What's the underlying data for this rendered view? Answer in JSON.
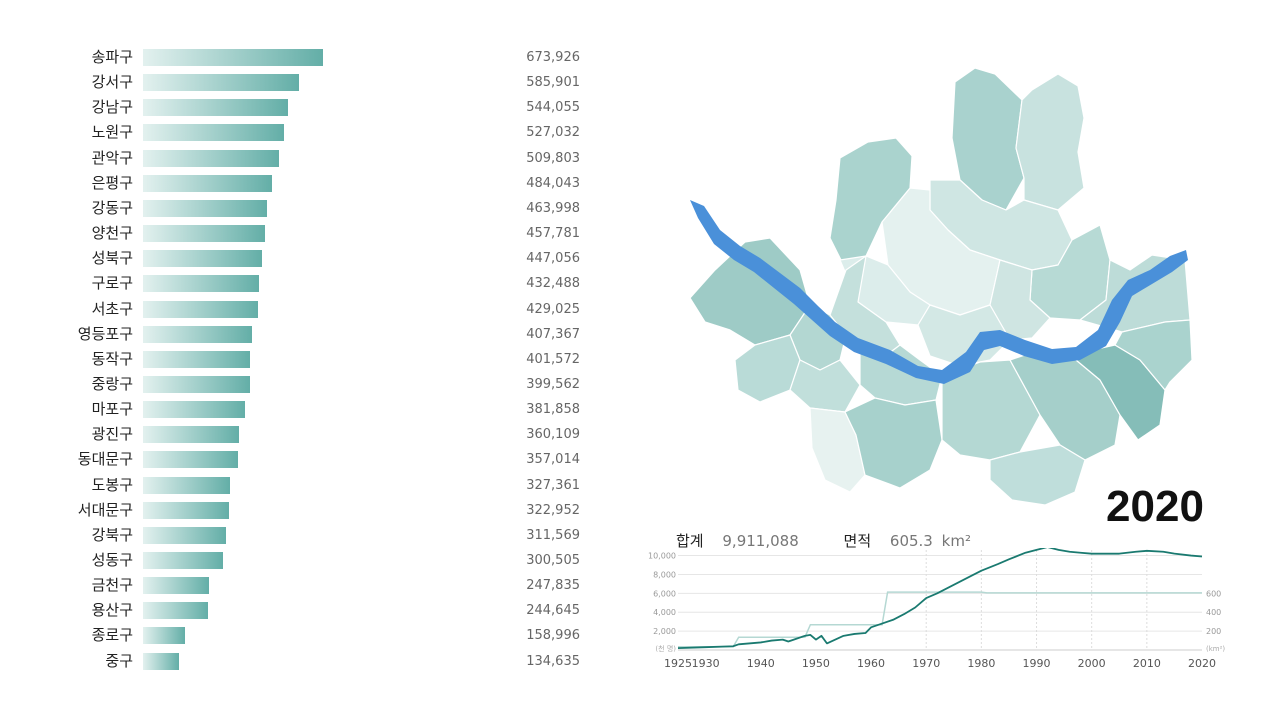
{
  "year": "2020",
  "summary": {
    "total_label": "합계",
    "total_value": "9,911,088",
    "area_label": "면적",
    "area_value": "605.3",
    "area_unit": "km²"
  },
  "colors": {
    "bar_start": "#e3f1ef",
    "bar_end": "#63aea7",
    "river": "#4a90d9",
    "population_line": "#1a7a70",
    "area_line": "#b5d8d3"
  },
  "chart_data": [
    {
      "type": "bar",
      "orientation": "horizontal",
      "categories": [
        "송파구",
        "강서구",
        "강남구",
        "노원구",
        "관악구",
        "은평구",
        "강동구",
        "양천구",
        "성북구",
        "구로구",
        "서초구",
        "영등포구",
        "동작구",
        "중랑구",
        "마포구",
        "광진구",
        "동대문구",
        "도봉구",
        "서대문구",
        "강북구",
        "성동구",
        "금천구",
        "용산구",
        "종로구",
        "중구"
      ],
      "values": [
        673926,
        585901,
        544055,
        527032,
        509803,
        484043,
        463998,
        457781,
        447056,
        432488,
        429025,
        407367,
        401572,
        399562,
        381858,
        360109,
        357014,
        327361,
        322952,
        311569,
        300505,
        247835,
        244645,
        158996,
        134635
      ],
      "value_labels": [
        "673,926",
        "585,901",
        "544,055",
        "527,032",
        "509,803",
        "484,043",
        "463,998",
        "457,781",
        "447,056",
        "432,488",
        "429,025",
        "407,367",
        "401,572",
        "399,562",
        "381,858",
        "360,109",
        "357,014",
        "327,361",
        "322,952",
        "311,569",
        "300,505",
        "247,835",
        "244,645",
        "158,996",
        "134,635"
      ]
    },
    {
      "type": "line",
      "x_ticks": [
        "1925",
        "1930",
        "1940",
        "1950",
        "1960",
        "1970",
        "1980",
        "1990",
        "2000",
        "2010",
        "2020"
      ],
      "xlim": [
        1925,
        2020
      ],
      "y_left_ticks": [
        "10,000",
        "8,000",
        "6,000",
        "4,000",
        "2,000"
      ],
      "y_left_unit": "(천 명)",
      "y_left_lim": [
        0,
        10800
      ],
      "y_right_ticks": [
        "600",
        "400",
        "200"
      ],
      "y_right_unit": "(km²)",
      "y_right_lim": [
        0,
        1080
      ],
      "series": [
        {
          "role": "population",
          "x": [
            1925,
            1930,
            1935,
            1936,
            1940,
            1942,
            1944,
            1945,
            1946,
            1948,
            1949,
            1950,
            1951,
            1952,
            1955,
            1957,
            1959,
            1960,
            1962,
            1964,
            1966,
            1968,
            1970,
            1972,
            1975,
            1978,
            1980,
            1983,
            1985,
            1988,
            1990,
            1992,
            1994,
            1996,
            1998,
            2000,
            2003,
            2005,
            2008,
            2010,
            2013,
            2015,
            2018,
            2020
          ],
          "y": [
            200,
            300,
            400,
            600,
            800,
            1000,
            1100,
            900,
            1100,
            1500,
            1600,
            1100,
            1500,
            700,
            1500,
            1700,
            1800,
            2400,
            2800,
            3200,
            3800,
            4500,
            5500,
            6000,
            6900,
            7800,
            8400,
            9100,
            9600,
            10300,
            10600,
            10900,
            10600,
            10400,
            10300,
            10200,
            10200,
            10200,
            10400,
            10500,
            10400,
            10200,
            10000,
            9900
          ]
        },
        {
          "role": "area",
          "x": [
            1925,
            1935,
            1936,
            1948,
            1949,
            1962,
            1963,
            1980,
            1981,
            2020
          ],
          "y": [
            35,
            35,
            135,
            135,
            268,
            268,
            613,
            613,
            605,
            605
          ]
        }
      ]
    }
  ]
}
